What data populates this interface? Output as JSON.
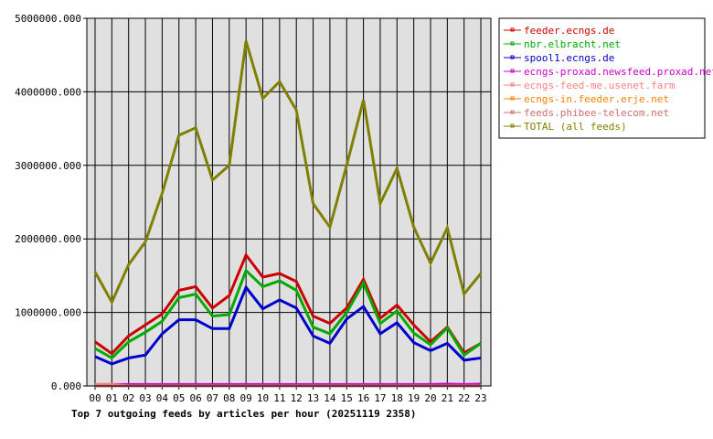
{
  "chart_data": {
    "type": "line",
    "title": "Top 7 outgoing feeds by articles per hour (20251119 2358)",
    "xlabel": "",
    "ylabel": "",
    "ylim": [
      0,
      5000000
    ],
    "yticks": [
      "0.000",
      "1000000.000",
      "2000000.000",
      "3000000.000",
      "4000000.000",
      "5000000.000"
    ],
    "grid": true,
    "legend_position": "right",
    "categories": [
      "00",
      "01",
      "02",
      "03",
      "04",
      "05",
      "06",
      "07",
      "08",
      "09",
      "10",
      "11",
      "12",
      "13",
      "14",
      "15",
      "16",
      "17",
      "18",
      "19",
      "20",
      "21",
      "22",
      "23"
    ],
    "series": [
      {
        "name": "feeder.ecngs.de",
        "color": "#cc0000",
        "values": [
          600000,
          440000,
          680000,
          830000,
          980000,
          1300000,
          1350000,
          1060000,
          1230000,
          1780000,
          1480000,
          1530000,
          1420000,
          950000,
          850000,
          1060000,
          1450000,
          920000,
          1100000,
          830000,
          600000,
          800000,
          450000,
          580000
        ]
      },
      {
        "name": "nbr.elbracht.net",
        "color": "#00aa00",
        "values": [
          510000,
          380000,
          600000,
          730000,
          880000,
          1200000,
          1250000,
          950000,
          970000,
          1570000,
          1350000,
          1430000,
          1300000,
          800000,
          710000,
          1000000,
          1400000,
          850000,
          1020000,
          720000,
          560000,
          790000,
          420000,
          580000
        ]
      },
      {
        "name": "spool1.ecngs.de",
        "color": "#0000cc",
        "values": [
          400000,
          300000,
          380000,
          420000,
          710000,
          900000,
          900000,
          780000,
          780000,
          1340000,
          1050000,
          1170000,
          1060000,
          680000,
          580000,
          910000,
          1080000,
          710000,
          860000,
          590000,
          480000,
          580000,
          350000,
          380000
        ]
      },
      {
        "name": "ecngs-proxad.newsfeed.proxad.net",
        "color": "#cc00cc",
        "values": [
          20000,
          20000,
          20000,
          20000,
          20000,
          20000,
          20000,
          20000,
          20000,
          20000,
          20000,
          20000,
          20000,
          20000,
          20000,
          20000,
          20000,
          20000,
          20000,
          20000,
          20000,
          25000,
          20000,
          25000
        ]
      },
      {
        "name": "ecngs-feed-me.usenet.farm",
        "color": "#ff8080",
        "values": [
          20000,
          20000,
          0,
          0,
          0,
          0,
          0,
          0,
          0,
          0,
          0,
          0,
          0,
          0,
          0,
          0,
          0,
          0,
          0,
          0,
          0,
          0,
          0,
          0
        ]
      },
      {
        "name": "ecngs-in.feeder.erje.net",
        "color": "#ff8000",
        "values": [
          0,
          0,
          0,
          0,
          0,
          0,
          0,
          0,
          0,
          0,
          0,
          0,
          0,
          0,
          0,
          0,
          0,
          0,
          0,
          0,
          0,
          0,
          0,
          0
        ]
      },
      {
        "name": "feeds.phibee-telecom.net",
        "color": "#cc7070",
        "values": [
          0,
          0,
          0,
          0,
          0,
          0,
          0,
          0,
          0,
          0,
          0,
          0,
          0,
          0,
          0,
          0,
          0,
          0,
          0,
          0,
          0,
          0,
          0,
          0
        ]
      },
      {
        "name": "TOTAL (all feeds)",
        "color": "#808000",
        "values": [
          1550000,
          1140000,
          1650000,
          1960000,
          2620000,
          3410000,
          3510000,
          2800000,
          3000000,
          4690000,
          3910000,
          4140000,
          3750000,
          2480000,
          2160000,
          3000000,
          3890000,
          2480000,
          2960000,
          2160000,
          1670000,
          2150000,
          1250000,
          1530000
        ]
      }
    ]
  }
}
